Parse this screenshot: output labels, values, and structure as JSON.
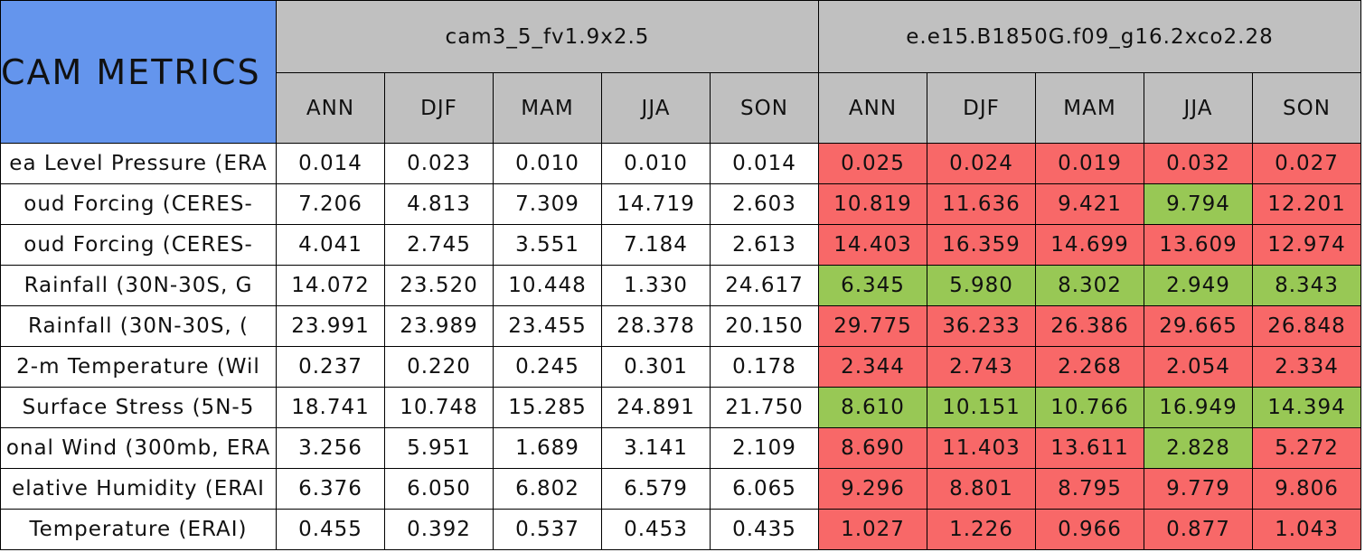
{
  "table": {
    "title": "CAM METRICS",
    "groups": [
      {
        "name": "cam3_5_fv1.9x2.5",
        "seasons": [
          "ANN",
          "DJF",
          "MAM",
          "JJA",
          "SON"
        ]
      },
      {
        "name": "e.e15.B1850G.f09_g16.2xco2.28",
        "seasons": [
          "ANN",
          "DJF",
          "MAM",
          "JJA",
          "SON"
        ]
      }
    ],
    "rows": [
      {
        "label": "ea Level Pressure (ERA",
        "values": [
          "0.014",
          "0.023",
          "0.010",
          "0.010",
          "0.014",
          "0.025",
          "0.024",
          "0.019",
          "0.032",
          "0.027"
        ],
        "fills": [
          "#ffffff",
          "#ffffff",
          "#ffffff",
          "#ffffff",
          "#ffffff",
          "#f86868",
          "#f86868",
          "#f86868",
          "#f86868",
          "#f86868"
        ]
      },
      {
        "label": "oud Forcing (CERES-",
        "values": [
          "7.206",
          "4.813",
          "7.309",
          "14.719",
          "2.603",
          "10.819",
          "11.636",
          "9.421",
          "9.794",
          "12.201"
        ],
        "fills": [
          "#ffffff",
          "#ffffff",
          "#ffffff",
          "#ffffff",
          "#ffffff",
          "#f86868",
          "#f86868",
          "#f86868",
          "#98c855",
          "#f86868"
        ]
      },
      {
        "label": "oud Forcing (CERES-",
        "values": [
          "4.041",
          "2.745",
          "3.551",
          "7.184",
          "2.613",
          "14.403",
          "16.359",
          "14.699",
          "13.609",
          "12.974"
        ],
        "fills": [
          "#ffffff",
          "#ffffff",
          "#ffffff",
          "#ffffff",
          "#ffffff",
          "#f86868",
          "#f86868",
          "#f86868",
          "#f86868",
          "#f86868"
        ]
      },
      {
        "label": "Rainfall (30N-30S, G",
        "values": [
          "14.072",
          "23.520",
          "10.448",
          "1.330",
          "24.617",
          "6.345",
          "5.980",
          "8.302",
          "2.949",
          "8.343"
        ],
        "fills": [
          "#ffffff",
          "#ffffff",
          "#ffffff",
          "#ffffff",
          "#ffffff",
          "#98c855",
          "#98c855",
          "#98c855",
          "#98c855",
          "#98c855"
        ]
      },
      {
        "label": "Rainfall (30N-30S, (",
        "values": [
          "23.991",
          "23.989",
          "23.455",
          "28.378",
          "20.150",
          "29.775",
          "36.233",
          "26.386",
          "29.665",
          "26.848"
        ],
        "fills": [
          "#ffffff",
          "#ffffff",
          "#ffffff",
          "#ffffff",
          "#ffffff",
          "#f86868",
          "#f86868",
          "#f86868",
          "#f86868",
          "#f86868"
        ]
      },
      {
        "label": "2-m Temperature (Wil",
        "values": [
          "0.237",
          "0.220",
          "0.245",
          "0.301",
          "0.178",
          "2.344",
          "2.743",
          "2.268",
          "2.054",
          "2.334"
        ],
        "fills": [
          "#ffffff",
          "#ffffff",
          "#ffffff",
          "#ffffff",
          "#ffffff",
          "#f86868",
          "#f86868",
          "#f86868",
          "#f86868",
          "#f86868"
        ]
      },
      {
        "label": "Surface Stress (5N-5",
        "values": [
          "18.741",
          "10.748",
          "15.285",
          "24.891",
          "21.750",
          "8.610",
          "10.151",
          "10.766",
          "16.949",
          "14.394"
        ],
        "fills": [
          "#ffffff",
          "#ffffff",
          "#ffffff",
          "#ffffff",
          "#ffffff",
          "#98c855",
          "#98c855",
          "#98c855",
          "#98c855",
          "#98c855"
        ]
      },
      {
        "label": "onal Wind (300mb, ERA",
        "values": [
          "3.256",
          "5.951",
          "1.689",
          "3.141",
          "2.109",
          "8.690",
          "11.403",
          "13.611",
          "2.828",
          "5.272"
        ],
        "fills": [
          "#ffffff",
          "#ffffff",
          "#ffffff",
          "#ffffff",
          "#ffffff",
          "#f86868",
          "#f86868",
          "#f86868",
          "#98c855",
          "#f86868"
        ]
      },
      {
        "label": "elative Humidity (ERAI",
        "values": [
          "6.376",
          "6.050",
          "6.802",
          "6.579",
          "6.065",
          "9.296",
          "8.801",
          "8.795",
          "9.779",
          "9.806"
        ],
        "fills": [
          "#ffffff",
          "#ffffff",
          "#ffffff",
          "#ffffff",
          "#ffffff",
          "#f86868",
          "#f86868",
          "#f86868",
          "#f86868",
          "#f86868"
        ]
      },
      {
        "label": "Temperature (ERAI)",
        "values": [
          "0.455",
          "0.392",
          "0.537",
          "0.453",
          "0.435",
          "1.027",
          "1.226",
          "0.966",
          "0.877",
          "1.043"
        ],
        "fills": [
          "#ffffff",
          "#ffffff",
          "#ffffff",
          "#ffffff",
          "#ffffff",
          "#f86868",
          "#f86868",
          "#f86868",
          "#f86868",
          "#f86868"
        ]
      }
    ]
  }
}
